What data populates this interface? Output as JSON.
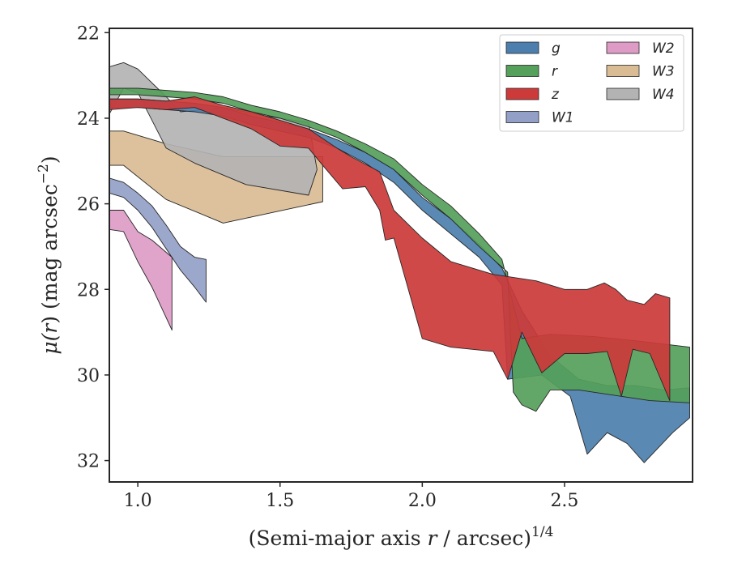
{
  "chart_data": {
    "type": "area",
    "xlabel_main": "(Semi-major axis ",
    "xlabel_var": "r",
    "xlabel_rest": " / arcsec)",
    "xlabel_sup": "1/4",
    "ylabel_main": "μ(",
    "ylabel_var": "r",
    "ylabel_rest": ") (mag arcsec",
    "ylabel_sup": "−2",
    "ylabel_end": ")",
    "xlim": [
      0.9,
      2.95
    ],
    "ylim": [
      32.5,
      21.9
    ],
    "y_inverted": true,
    "xticks": [
      1.0,
      1.5,
      2.0,
      2.5
    ],
    "xtick_labels": [
      "1.0",
      "1.5",
      "2.0",
      "2.5"
    ],
    "yticks": [
      22,
      24,
      26,
      28,
      30,
      32
    ],
    "ytick_labels": [
      "22",
      "24",
      "26",
      "28",
      "30",
      "32"
    ],
    "grid": false,
    "legend_position": "top-right",
    "legend_columns": 2,
    "series": [
      {
        "name": "W3",
        "color": "#d9bc94",
        "upper": [
          [
            0.9,
            24.3
          ],
          [
            0.95,
            24.3
          ],
          [
            1.1,
            24.6
          ],
          [
            1.3,
            24.9
          ],
          [
            1.5,
            24.9
          ],
          [
            1.65,
            24.9
          ]
        ],
        "lower": [
          [
            0.9,
            25.1
          ],
          [
            0.95,
            25.1
          ],
          [
            1.1,
            25.9
          ],
          [
            1.3,
            26.45
          ],
          [
            1.65,
            25.95
          ]
        ]
      },
      {
        "name": "W4",
        "color": "#b3b3b3",
        "upper": [
          [
            0.9,
            22.8
          ],
          [
            0.95,
            22.7
          ],
          [
            1.0,
            22.85
          ],
          [
            1.1,
            23.5
          ],
          [
            1.15,
            23.85
          ],
          [
            1.3,
            23.75
          ],
          [
            1.45,
            23.95
          ],
          [
            1.6,
            24.1
          ]
        ],
        "lower": [
          [
            0.9,
            23.9
          ],
          [
            0.95,
            23.3
          ],
          [
            1.0,
            23.4
          ],
          [
            1.1,
            24.7
          ],
          [
            1.2,
            25.05
          ],
          [
            1.38,
            25.55
          ],
          [
            1.6,
            25.8
          ],
          [
            1.63,
            25.2
          ]
        ]
      },
      {
        "name": "W1",
        "color": "#929fc7",
        "upper": [
          [
            0.9,
            25.4
          ],
          [
            0.95,
            25.5
          ],
          [
            1.0,
            25.75
          ],
          [
            1.05,
            26.05
          ],
          [
            1.1,
            26.5
          ],
          [
            1.15,
            27.0
          ],
          [
            1.2,
            27.25
          ],
          [
            1.24,
            27.3
          ]
        ],
        "lower": [
          [
            0.9,
            25.75
          ],
          [
            0.95,
            25.85
          ],
          [
            1.0,
            26.15
          ],
          [
            1.05,
            26.55
          ],
          [
            1.1,
            27.05
          ],
          [
            1.15,
            27.55
          ],
          [
            1.2,
            27.95
          ],
          [
            1.24,
            28.3
          ]
        ]
      },
      {
        "name": "W2",
        "color": "#dd9bc6",
        "upper": [
          [
            0.9,
            26.15
          ],
          [
            0.95,
            26.15
          ],
          [
            1.0,
            26.65
          ],
          [
            1.05,
            26.85
          ],
          [
            1.12,
            27.25
          ]
        ],
        "lower": [
          [
            0.9,
            26.6
          ],
          [
            0.95,
            26.65
          ],
          [
            1.0,
            27.35
          ],
          [
            1.05,
            27.95
          ],
          [
            1.12,
            28.95
          ]
        ]
      },
      {
        "name": "g",
        "color": "#4c7fad",
        "upper": [
          [
            0.9,
            23.55
          ],
          [
            1.0,
            23.55
          ],
          [
            1.1,
            23.6
          ],
          [
            1.2,
            23.65
          ],
          [
            1.3,
            23.75
          ],
          [
            1.4,
            23.95
          ],
          [
            1.5,
            24.1
          ],
          [
            1.6,
            24.25
          ],
          [
            1.7,
            24.5
          ],
          [
            1.8,
            24.8
          ],
          [
            1.9,
            25.2
          ],
          [
            2.0,
            25.85
          ],
          [
            2.1,
            26.35
          ],
          [
            2.2,
            26.95
          ],
          [
            2.28,
            27.5
          ],
          [
            2.35,
            28.5
          ],
          [
            2.45,
            29.55
          ],
          [
            2.55,
            30.1
          ],
          [
            2.65,
            30.25
          ],
          [
            2.75,
            30.25
          ],
          [
            2.85,
            30.35
          ],
          [
            2.94,
            30.3
          ]
        ],
        "lower": [
          [
            0.9,
            23.75
          ],
          [
            1.0,
            23.75
          ],
          [
            1.1,
            23.8
          ],
          [
            1.2,
            23.85
          ],
          [
            1.3,
            23.95
          ],
          [
            1.4,
            24.15
          ],
          [
            1.5,
            24.3
          ],
          [
            1.6,
            24.45
          ],
          [
            1.7,
            24.7
          ],
          [
            1.8,
            25.05
          ],
          [
            1.9,
            25.5
          ],
          [
            2.0,
            26.15
          ],
          [
            2.1,
            26.7
          ],
          [
            2.2,
            27.25
          ],
          [
            2.28,
            27.9
          ],
          [
            2.3,
            30.1
          ],
          [
            2.42,
            30.0
          ],
          [
            2.52,
            30.5
          ],
          [
            2.58,
            31.85
          ],
          [
            2.65,
            31.35
          ],
          [
            2.72,
            31.6
          ],
          [
            2.78,
            32.05
          ],
          [
            2.88,
            31.35
          ],
          [
            2.94,
            31.0
          ]
        ]
      },
      {
        "name": "r",
        "color": "#55a05a",
        "upper": [
          [
            0.9,
            23.3
          ],
          [
            1.0,
            23.3
          ],
          [
            1.1,
            23.35
          ],
          [
            1.2,
            23.4
          ],
          [
            1.3,
            23.5
          ],
          [
            1.4,
            23.7
          ],
          [
            1.5,
            23.85
          ],
          [
            1.6,
            24.05
          ],
          [
            1.7,
            24.3
          ],
          [
            1.8,
            24.6
          ],
          [
            1.9,
            24.95
          ],
          [
            2.0,
            25.55
          ],
          [
            2.1,
            26.05
          ],
          [
            2.2,
            26.7
          ],
          [
            2.28,
            27.3
          ],
          [
            2.35,
            29.15
          ],
          [
            2.45,
            29.05
          ],
          [
            2.6,
            29.1
          ],
          [
            2.75,
            29.2
          ],
          [
            2.94,
            29.35
          ]
        ],
        "lower": [
          [
            0.9,
            23.45
          ],
          [
            1.0,
            23.45
          ],
          [
            1.1,
            23.5
          ],
          [
            1.2,
            23.55
          ],
          [
            1.3,
            23.65
          ],
          [
            1.4,
            23.85
          ],
          [
            1.5,
            24.0
          ],
          [
            1.6,
            24.2
          ],
          [
            1.7,
            24.45
          ],
          [
            1.8,
            24.8
          ],
          [
            1.9,
            25.2
          ],
          [
            2.0,
            25.8
          ],
          [
            2.1,
            26.35
          ],
          [
            2.2,
            27.0
          ],
          [
            2.3,
            27.6
          ],
          [
            2.32,
            30.4
          ],
          [
            2.35,
            30.7
          ],
          [
            2.4,
            30.85
          ],
          [
            2.45,
            30.35
          ],
          [
            2.55,
            30.35
          ],
          [
            2.7,
            30.5
          ],
          [
            2.8,
            30.6
          ],
          [
            2.94,
            30.65
          ]
        ]
      },
      {
        "name": "z",
        "color": "#cc3a3a",
        "upper": [
          [
            0.9,
            23.55
          ],
          [
            1.0,
            23.55
          ],
          [
            1.1,
            23.6
          ],
          [
            1.2,
            23.5
          ],
          [
            1.3,
            23.7
          ],
          [
            1.4,
            23.85
          ],
          [
            1.5,
            24.05
          ],
          [
            1.6,
            24.25
          ],
          [
            1.7,
            24.7
          ],
          [
            1.75,
            24.9
          ],
          [
            1.85,
            25.25
          ],
          [
            1.9,
            26.15
          ],
          [
            2.0,
            26.8
          ],
          [
            2.1,
            27.35
          ],
          [
            2.25,
            27.65
          ],
          [
            2.4,
            27.8
          ],
          [
            2.5,
            28.0
          ],
          [
            2.58,
            28.0
          ],
          [
            2.64,
            27.85
          ],
          [
            2.68,
            28.0
          ],
          [
            2.72,
            28.25
          ],
          [
            2.78,
            28.35
          ],
          [
            2.82,
            28.1
          ],
          [
            2.87,
            28.2
          ]
        ],
        "lower": [
          [
            0.9,
            23.8
          ],
          [
            1.0,
            23.75
          ],
          [
            1.1,
            23.8
          ],
          [
            1.2,
            23.75
          ],
          [
            1.3,
            24.0
          ],
          [
            1.4,
            24.25
          ],
          [
            1.5,
            24.65
          ],
          [
            1.6,
            24.7
          ],
          [
            1.65,
            25.1
          ],
          [
            1.72,
            25.65
          ],
          [
            1.8,
            25.6
          ],
          [
            1.85,
            26.15
          ],
          [
            1.87,
            26.85
          ],
          [
            1.9,
            26.8
          ],
          [
            2.0,
            29.15
          ],
          [
            2.1,
            29.35
          ],
          [
            2.25,
            29.45
          ],
          [
            2.3,
            30.1
          ],
          [
            2.35,
            29.0
          ],
          [
            2.42,
            29.95
          ],
          [
            2.5,
            29.5
          ],
          [
            2.58,
            29.5
          ],
          [
            2.65,
            29.45
          ],
          [
            2.7,
            30.5
          ],
          [
            2.74,
            29.4
          ],
          [
            2.8,
            29.5
          ],
          [
            2.87,
            30.6
          ]
        ]
      }
    ],
    "legend_order": [
      "g",
      "r",
      "z",
      "W1",
      "W2",
      "W3",
      "W4"
    ]
  }
}
